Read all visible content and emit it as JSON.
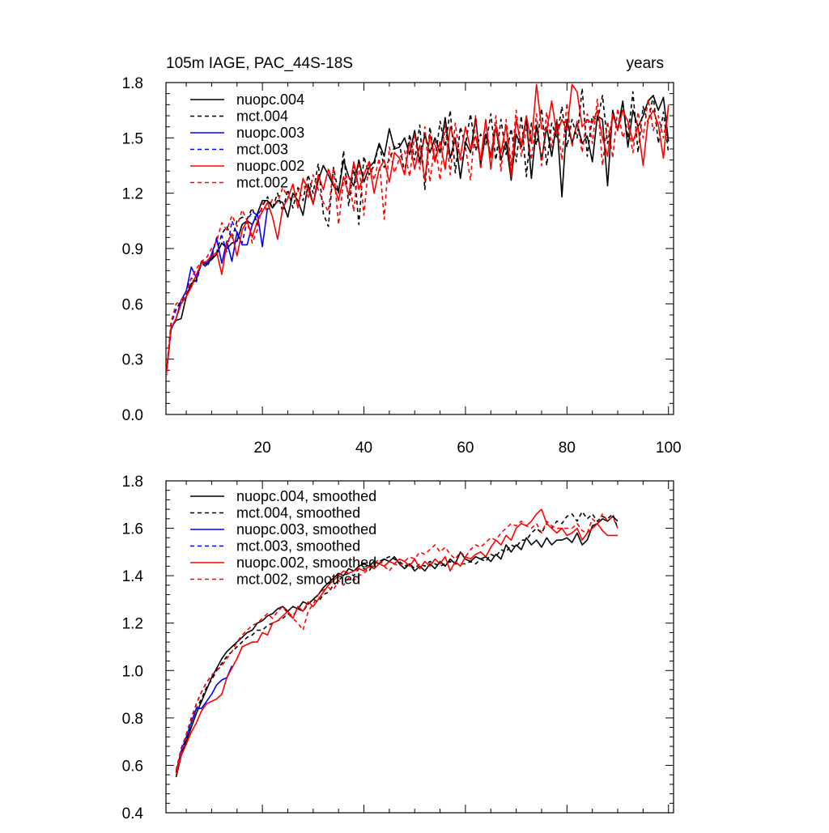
{
  "chart_data": [
    {
      "type": "line",
      "title": "105m IAGE, PAC_44S-18S",
      "title_right": "years",
      "xlabel": "",
      "ylabel": "",
      "xlim": [
        1,
        101
      ],
      "ylim": [
        0.0,
        1.8
      ],
      "xticks": [
        20,
        40,
        60,
        80,
        100
      ],
      "yticks": [
        0.0,
        0.3,
        0.6,
        0.9,
        1.2,
        1.5,
        1.8
      ],
      "ytick_labels": [
        "0.0",
        "0.3",
        "0.6",
        "0.9",
        "1.2",
        "1.5",
        "1.8"
      ],
      "xtick_labels": [
        "20",
        "40",
        "60",
        "80",
        "100"
      ],
      "legend": "top-left",
      "series": [
        {
          "name": "nuopc.004",
          "color": "#000000",
          "dash": "solid",
          "x_start": 1,
          "values": [
            0.2,
            0.47,
            0.51,
            0.52,
            0.64,
            0.71,
            0.73,
            0.83,
            0.82,
            0.84,
            0.87,
            0.93,
            0.9,
            0.93,
            0.94,
            1.03,
            1.05,
            1.03,
            1.09,
            1.16,
            1.16,
            1.12,
            1.16,
            1.15,
            1.07,
            1.2,
            1.16,
            1.08,
            1.25,
            1.14,
            1.27,
            1.35,
            1.3,
            1.24,
            1.21,
            1.38,
            1.29,
            1.24,
            1.38,
            1.26,
            1.34,
            1.37,
            1.47,
            1.4,
            1.55,
            1.44,
            1.45,
            1.5,
            1.41,
            1.54,
            1.37,
            1.52,
            1.42,
            1.5,
            1.42,
            1.61,
            1.39,
            1.5,
            1.28,
            1.48,
            1.42,
            1.61,
            1.35,
            1.52,
            1.4,
            1.56,
            1.38,
            1.48,
            1.27,
            1.52,
            1.45,
            1.6,
            1.28,
            1.57,
            1.38,
            1.56,
            1.4,
            1.59,
            1.18,
            1.6,
            1.47,
            1.58,
            1.47,
            1.51,
            1.37,
            1.62,
            1.6,
            1.24,
            1.65,
            1.54,
            1.7,
            1.45,
            1.65,
            1.56,
            1.62,
            1.7,
            1.73,
            1.65,
            1.72,
            1.48
          ]
        },
        {
          "name": "mct.004",
          "color": "#000000",
          "dash": "dashed",
          "x_start": 1,
          "values": [
            0.2,
            0.5,
            0.57,
            0.62,
            0.65,
            0.71,
            0.75,
            0.82,
            0.8,
            0.85,
            0.88,
            0.98,
            1.02,
            0.95,
            1.05,
            1.07,
            1.06,
            1.12,
            1.03,
            1.13,
            1.18,
            1.12,
            1.2,
            1.1,
            1.22,
            1.12,
            1.23,
            1.16,
            1.3,
            1.2,
            1.36,
            1.09,
            1.02,
            1.34,
            1.2,
            1.43,
            1.13,
            1.35,
            1.03,
            1.4,
            1.3,
            1.35,
            1.47,
            1.34,
            1.38,
            1.45,
            1.47,
            1.31,
            1.52,
            1.38,
            1.57,
            1.22,
            1.56,
            1.37,
            1.59,
            1.45,
            1.65,
            1.31,
            1.56,
            1.46,
            1.63,
            1.43,
            1.52,
            1.46,
            1.63,
            1.38,
            1.6,
            1.41,
            1.55,
            1.37,
            1.62,
            1.29,
            1.58,
            1.46,
            1.66,
            1.35,
            1.58,
            1.5,
            1.67,
            1.45,
            1.6,
            1.5,
            1.77,
            1.4,
            1.62,
            1.59,
            1.73,
            1.47,
            1.62,
            1.55,
            1.68,
            1.5,
            1.75,
            1.42,
            1.67,
            1.58,
            1.73,
            1.47,
            1.64,
            1.42
          ]
        },
        {
          "name": "nuopc.003",
          "color": "#0000ff",
          "dash": "solid",
          "x_start": 1,
          "values": [
            0.2,
            0.46,
            0.52,
            0.62,
            0.67,
            0.8,
            0.74,
            0.83,
            0.81,
            0.87,
            0.95,
            0.82,
            0.94,
            0.83,
            0.99,
            0.92,
            0.92,
            1.03,
            1.09,
            0.91,
            1.12
          ]
        },
        {
          "name": "mct.003",
          "color": "#0000ff",
          "dash": "dashed",
          "x_start": 1,
          "values": [
            0.2,
            0.49,
            0.57,
            0.6,
            0.67,
            0.74,
            0.72,
            0.82,
            0.82,
            0.85,
            0.96,
            0.97,
            0.88,
            1.05,
            0.98,
            0.93,
            1.05,
            1.1,
            1.08,
            1.12
          ]
        },
        {
          "name": "nuopc.002",
          "color": "#ff0000",
          "dash": "solid",
          "x_start": 1,
          "values": [
            0.2,
            0.47,
            0.52,
            0.6,
            0.64,
            0.69,
            0.76,
            0.82,
            0.83,
            0.86,
            0.88,
            0.76,
            0.93,
            0.98,
            0.86,
            1.0,
            1.05,
            0.96,
            1.05,
            1.1,
            1.15,
            1.07,
            0.95,
            1.12,
            1.17,
            1.25,
            1.12,
            1.28,
            1.22,
            1.14,
            1.3,
            1.22,
            1.33,
            1.25,
            1.16,
            1.29,
            1.19,
            1.37,
            1.22,
            1.3,
            1.37,
            1.2,
            1.33,
            1.38,
            1.26,
            1.42,
            1.39,
            1.3,
            1.48,
            1.33,
            1.46,
            1.27,
            1.52,
            1.37,
            1.48,
            1.33,
            1.56,
            1.47,
            1.4,
            1.56,
            1.44,
            1.51,
            1.38,
            1.6,
            1.33,
            1.57,
            1.42,
            1.57,
            1.29,
            1.6,
            1.46,
            1.62,
            1.47,
            1.79,
            1.55,
            1.54,
            1.7,
            1.52,
            1.6,
            1.54,
            1.79,
            1.75,
            1.56,
            1.6,
            1.58,
            1.65,
            1.5,
            1.4,
            1.63,
            1.54,
            1.65,
            1.59,
            1.48,
            1.56,
            1.35,
            1.6,
            1.65,
            1.57,
            1.39,
            1.68
          ]
        },
        {
          "name": "mct.002",
          "color": "#ff0000",
          "dash": "dashed",
          "x_start": 1,
          "values": [
            0.2,
            0.5,
            0.6,
            0.62,
            0.66,
            0.74,
            0.79,
            0.83,
            0.85,
            0.9,
            0.94,
            1.04,
            1.0,
            1.08,
            1.02,
            1.11,
            1.05,
            0.93,
            1.0,
            1.15,
            1.1,
            1.17,
            1.15,
            1.23,
            1.18,
            1.17,
            1.21,
            1.26,
            1.17,
            1.3,
            1.22,
            1.15,
            1.1,
            1.34,
            1.03,
            1.27,
            1.3,
            1.1,
            1.37,
            1.08,
            1.38,
            1.27,
            1.39,
            1.06,
            1.45,
            1.31,
            1.39,
            1.43,
            1.29,
            1.52,
            1.33,
            1.56,
            1.26,
            1.48,
            1.27,
            1.57,
            1.3,
            1.58,
            1.37,
            1.45,
            1.27,
            1.62,
            1.33,
            1.59,
            1.39,
            1.62,
            1.32,
            1.6,
            1.35,
            1.65,
            1.4,
            1.55,
            1.38,
            1.63,
            1.35,
            1.64,
            1.45,
            1.6,
            1.38,
            1.69,
            1.45,
            1.59,
            1.42,
            1.63,
            1.47,
            1.71,
            1.35,
            1.59,
            1.39,
            1.66,
            1.5,
            1.58,
            1.42,
            1.64,
            1.5,
            1.71,
            1.54,
            1.62,
            1.5,
            1.66
          ]
        }
      ]
    },
    {
      "type": "line",
      "title": "",
      "xlabel": "",
      "ylabel": "",
      "xlim": [
        1,
        101
      ],
      "ylim": [
        0.4,
        1.8
      ],
      "xticks": [
        20,
        40,
        60,
        80,
        100
      ],
      "yticks": [
        0.4,
        0.6,
        0.8,
        1.0,
        1.2,
        1.4,
        1.6,
        1.8
      ],
      "ytick_labels": [
        "0.4",
        "0.6",
        "0.8",
        "1.0",
        "1.2",
        "1.4",
        "1.6",
        "1.8"
      ],
      "legend": "top-left",
      "series": [
        {
          "name": "nuopc.004, smoothed",
          "color": "#000000",
          "dash": "solid",
          "x_start": 3,
          "values": [
            0.55,
            0.64,
            0.7,
            0.76,
            0.82,
            0.87,
            0.92,
            0.97,
            1.01,
            1.05,
            1.08,
            1.1,
            1.12,
            1.14,
            1.16,
            1.17,
            1.2,
            1.21,
            1.23,
            1.24,
            1.26,
            1.27,
            1.25,
            1.27,
            1.26,
            1.29,
            1.28,
            1.3,
            1.32,
            1.35,
            1.37,
            1.39,
            1.41,
            1.4,
            1.43,
            1.42,
            1.44,
            1.45,
            1.44,
            1.46,
            1.45,
            1.47,
            1.46,
            1.48,
            1.45,
            1.43,
            1.45,
            1.42,
            1.44,
            1.42,
            1.45,
            1.43,
            1.46,
            1.44,
            1.47,
            1.45,
            1.5,
            1.47,
            1.46,
            1.48,
            1.47,
            1.48,
            1.46,
            1.49,
            1.47,
            1.53,
            1.5,
            1.53,
            1.51,
            1.56,
            1.53,
            1.55,
            1.52,
            1.56,
            1.53,
            1.55,
            1.55,
            1.56,
            1.54,
            1.58,
            1.53,
            1.55,
            1.61,
            1.62,
            1.64,
            1.63,
            1.65,
            1.63
          ]
        },
        {
          "name": "mct.004, smoothed",
          "color": "#000000",
          "dash": "dashed",
          "x_start": 3,
          "values": [
            0.57,
            0.65,
            0.71,
            0.78,
            0.84,
            0.88,
            0.93,
            0.96,
            1.0,
            1.03,
            1.06,
            1.08,
            1.1,
            1.12,
            1.14,
            1.15,
            1.17,
            1.17,
            1.19,
            1.2,
            1.21,
            1.22,
            1.24,
            1.23,
            1.26,
            1.25,
            1.28,
            1.3,
            1.29,
            1.32,
            1.33,
            1.36,
            1.38,
            1.4,
            1.41,
            1.4,
            1.43,
            1.43,
            1.42,
            1.45,
            1.46,
            1.47,
            1.48,
            1.47,
            1.46,
            1.44,
            1.45,
            1.43,
            1.45,
            1.44,
            1.46,
            1.45,
            1.44,
            1.45,
            1.46,
            1.45,
            1.45,
            1.45,
            1.46,
            1.45,
            1.47,
            1.46,
            1.49,
            1.48,
            1.51,
            1.5,
            1.53,
            1.52,
            1.55,
            1.55,
            1.58,
            1.6,
            1.58,
            1.62,
            1.6,
            1.63,
            1.62,
            1.65,
            1.66,
            1.63,
            1.67,
            1.64,
            1.66,
            1.63,
            1.65,
            1.64,
            1.66,
            1.6
          ]
        },
        {
          "name": "nuopc.003, smoothed",
          "color": "#0000ff",
          "dash": "solid",
          "x_start": 3,
          "values": [
            0.57,
            0.66,
            0.72,
            0.78,
            0.84,
            0.84,
            0.87,
            0.9,
            0.94,
            0.96,
            0.97,
            1.02
          ]
        },
        {
          "name": "mct.003, smoothed",
          "color": "#0000ff",
          "dash": "dashed",
          "x_start": 3,
          "values": [
            0.58,
            0.67,
            0.73,
            0.8,
            0.86,
            0.91,
            0.95,
            0.98,
            1.0,
            1.02
          ]
        },
        {
          "name": "nuopc.002, smoothed",
          "color": "#ff0000",
          "dash": "solid",
          "x_start": 3,
          "values": [
            0.56,
            0.64,
            0.69,
            0.74,
            0.78,
            0.83,
            0.86,
            0.87,
            0.88,
            0.9,
            0.97,
            1.01,
            1.05,
            1.1,
            1.11,
            1.12,
            1.12,
            1.16,
            1.15,
            1.2,
            1.21,
            1.23,
            1.25,
            1.22,
            1.27,
            1.25,
            1.29,
            1.27,
            1.3,
            1.33,
            1.36,
            1.38,
            1.4,
            1.42,
            1.41,
            1.42,
            1.43,
            1.42,
            1.44,
            1.43,
            1.45,
            1.44,
            1.46,
            1.45,
            1.47,
            1.46,
            1.44,
            1.47,
            1.43,
            1.46,
            1.44,
            1.47,
            1.45,
            1.48,
            1.42,
            1.46,
            1.44,
            1.48,
            1.47,
            1.49,
            1.5,
            1.48,
            1.52,
            1.55,
            1.53,
            1.57,
            1.55,
            1.6,
            1.62,
            1.61,
            1.63,
            1.66,
            1.68,
            1.62,
            1.6,
            1.58,
            1.6,
            1.57,
            1.58,
            1.6,
            1.55,
            1.58,
            1.6,
            1.62,
            1.59,
            1.57,
            1.57,
            1.57
          ]
        },
        {
          "name": "mct.002, smoothed",
          "color": "#ff0000",
          "dash": "dashed",
          "x_start": 3,
          "values": [
            0.58,
            0.66,
            0.73,
            0.79,
            0.86,
            0.91,
            0.95,
            0.98,
            1.0,
            1.02,
            1.05,
            1.08,
            1.12,
            1.15,
            1.17,
            1.19,
            1.2,
            1.22,
            1.24,
            1.22,
            1.25,
            1.27,
            1.24,
            1.22,
            1.2,
            1.17,
            1.25,
            1.28,
            1.32,
            1.34,
            1.35,
            1.34,
            1.38,
            1.36,
            1.39,
            1.38,
            1.4,
            1.41,
            1.43,
            1.45,
            1.47,
            1.44,
            1.42,
            1.45,
            1.44,
            1.46,
            1.48,
            1.47,
            1.5,
            1.49,
            1.51,
            1.53,
            1.5,
            1.52,
            1.49,
            1.47,
            1.5,
            1.48,
            1.51,
            1.53,
            1.52,
            1.54,
            1.56,
            1.55,
            1.58,
            1.6,
            1.62,
            1.61,
            1.63,
            1.61,
            1.6,
            1.62,
            1.58,
            1.63,
            1.61,
            1.6,
            1.6,
            1.6,
            1.6,
            1.62,
            1.59,
            1.58,
            1.64,
            1.62,
            1.66,
            1.63,
            1.65,
            1.6
          ]
        }
      ]
    }
  ]
}
